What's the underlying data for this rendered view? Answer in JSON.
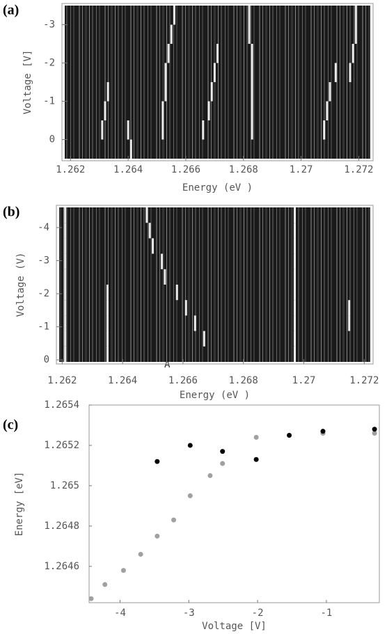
{
  "chart_data": [
    {
      "type": "map",
      "panel_label": "(a)",
      "xlabel": "Energy (eV )",
      "ylabel": "Voltage [V]",
      "xlim": [
        1.2618,
        1.2724
      ],
      "ylim": [
        0.5,
        -3.5
      ],
      "xticks": [
        1.262,
        1.264,
        1.266,
        1.268,
        1.27,
        1.272
      ],
      "yticks": [
        0,
        -1,
        -2,
        -3
      ],
      "series": [
        {
          "color": "#ffffff",
          "values": [
            null,
            1.2683,
            1.2683,
            1.2683,
            1.2683,
            1.2683,
            1.2682,
            1.2682
          ]
        },
        {
          "color": "#ffffff",
          "values": [
            null,
            1.2652,
            1.2652,
            1.2653,
            1.2653,
            1.2654,
            1.2655,
            1.2656
          ]
        },
        {
          "color": "#ffffff",
          "values": [
            null,
            1.2708,
            1.2709,
            1.271,
            1.2712,
            null,
            null,
            null
          ]
        },
        {
          "color": "#ffffff",
          "values": [
            null,
            null,
            null,
            null,
            1.2717,
            1.2718,
            1.2719,
            1.2719
          ]
        },
        {
          "color": "#ffffff",
          "values": [
            null,
            1.2631,
            1.2632,
            1.2633,
            null,
            null,
            null,
            null
          ]
        },
        {
          "color": "#ffffff",
          "values": [
            1.2641,
            1.264,
            null,
            null,
            null,
            null,
            null,
            null
          ]
        },
        {
          "color": "#ffffff",
          "values": [
            null,
            1.2666,
            1.2668,
            1.2669,
            1.267,
            1.2671,
            null,
            null
          ]
        }
      ]
    },
    {
      "type": "map",
      "panel_label": "(b)",
      "xlabel": "Energy (eV )",
      "ylabel": "Voltage (V)",
      "annotation": "A",
      "xlim": [
        1.2619,
        1.2722
      ],
      "ylim": [
        0.06,
        -4.61
      ],
      "xticks": [
        1.262,
        1.264,
        1.266,
        1.268,
        1.27,
        1.272
      ],
      "yticks": [
        0,
        -1,
        -2,
        -3,
        -4
      ],
      "series": [
        {
          "color": "#ffffff",
          "values": [
            null,
            1.2667,
            1.2664,
            1.2661,
            1.2658,
            1.2654,
            1.2653,
            1.265,
            1.2649,
            1.2648
          ]
        },
        {
          "color": "#ffffff",
          "values": [
            1.2697,
            1.2697,
            1.2697,
            1.2697,
            1.2697,
            1.2697,
            1.2697,
            1.2697,
            1.2697,
            1.2697
          ]
        },
        {
          "color": "#ffffff",
          "values": [
            1.2635,
            1.2635,
            1.2635,
            1.2635,
            1.2635,
            null,
            null,
            null,
            null,
            null
          ]
        },
        {
          "color": "#ffffff",
          "values": [
            1.2621,
            1.2621,
            1.2621,
            1.2621,
            1.2621,
            1.2621,
            1.2621,
            1.2621,
            1.2621,
            1.2621
          ]
        },
        {
          "color": "#ffffff",
          "values": [
            null,
            null,
            1.2715,
            1.2715,
            null,
            null,
            null,
            null,
            null,
            null
          ]
        }
      ]
    },
    {
      "type": "scatter",
      "panel_label": "(c)",
      "xlabel": "Voltage [V]",
      "ylabel": "Energy [eV]",
      "xlim": [
        -4.45,
        -0.23
      ],
      "ylim": [
        1.26442,
        1.2654
      ],
      "xticks": [
        -4,
        -3,
        -2,
        -1
      ],
      "yticks": [
        1.2646,
        1.2648,
        1.265,
        1.2652,
        1.2654
      ],
      "series": [
        {
          "color": "#a0a0a0",
          "x": [
            -4.42,
            -4.22,
            -3.95,
            -3.7,
            -3.46,
            -3.22,
            -2.98,
            -2.69,
            -2.51,
            -2.02,
            -1.05,
            -0.3
          ],
          "values": [
            1.26444,
            1.26451,
            1.26458,
            1.26466,
            1.26475,
            1.26483,
            1.26495,
            1.26505,
            1.26511,
            1.26524,
            1.26526,
            1.26526
          ]
        },
        {
          "color": "#000000",
          "x": [
            -3.46,
            -2.98,
            -2.51,
            -2.02,
            -1.54,
            -1.05,
            -0.3
          ],
          "values": [
            1.26512,
            1.2652,
            1.26517,
            1.26513,
            1.26525,
            1.26527,
            1.26528
          ]
        }
      ]
    }
  ]
}
